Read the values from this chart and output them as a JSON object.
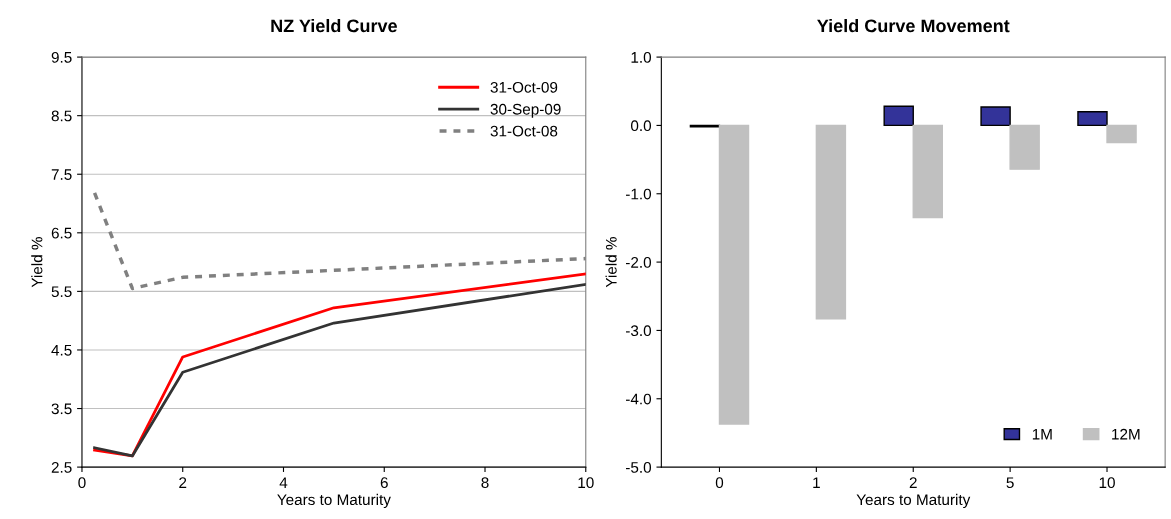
{
  "chart_data": [
    {
      "type": "line",
      "title": "NZ Yield Curve",
      "xlabel": "Years to Maturity",
      "ylabel": "Yield %",
      "xlim": [
        0,
        10
      ],
      "xticks": [
        0,
        2,
        4,
        6,
        8,
        10
      ],
      "ylim": [
        2.5,
        9.5
      ],
      "yticks": [
        2.5,
        3.5,
        4.5,
        5.5,
        6.5,
        7.5,
        8.5,
        9.5
      ],
      "grid": "y",
      "legend": "top right",
      "marker": "none",
      "series": [
        {
          "name": "31-Oct-09",
          "color": "#ff0000",
          "line_style": "solid",
          "x": [
            0.25,
            1,
            2,
            5,
            10
          ],
          "values": [
            2.79,
            2.69,
            4.38,
            5.22,
            5.8
          ]
        },
        {
          "name": "30-Sep-09",
          "color": "#333333",
          "line_style": "solid",
          "x": [
            0.25,
            1,
            2,
            5,
            10
          ],
          "values": [
            2.83,
            2.69,
            4.12,
            4.96,
            5.62
          ]
        },
        {
          "name": "31-Oct-08",
          "color": "#808080",
          "line_style": "dashed",
          "x": [
            0.25,
            1,
            2,
            5,
            10
          ],
          "values": [
            7.18,
            5.55,
            5.74,
            5.86,
            6.06
          ]
        }
      ]
    },
    {
      "type": "bar",
      "title": "Yield Curve Movement",
      "xlabel": "Years to Maturity",
      "ylabel": "Yield %",
      "categories": [
        "0",
        "1",
        "2",
        "5",
        "10"
      ],
      "ylim": [
        -5,
        1
      ],
      "yticks": [
        {
          "value": -5,
          "label": "-5.0"
        },
        {
          "value": -4,
          "label": "-4.0"
        },
        {
          "value": -3,
          "label": "-3.0"
        },
        {
          "value": -2,
          "label": "-2.0"
        },
        {
          "value": -1,
          "label": "-1.0"
        },
        {
          "value": 0,
          "label": "0.0"
        },
        {
          "value": 1,
          "label": "1.0"
        }
      ],
      "grid": false,
      "legend": "bottom right",
      "series": [
        {
          "name": "1M",
          "color": "#333399",
          "values": [
            -0.02,
            null,
            0.28,
            0.27,
            0.2
          ]
        },
        {
          "name": "12M",
          "color": "#c0c0c0",
          "values": [
            -4.37,
            -2.83,
            -1.35,
            -0.64,
            -0.25
          ]
        }
      ]
    }
  ]
}
